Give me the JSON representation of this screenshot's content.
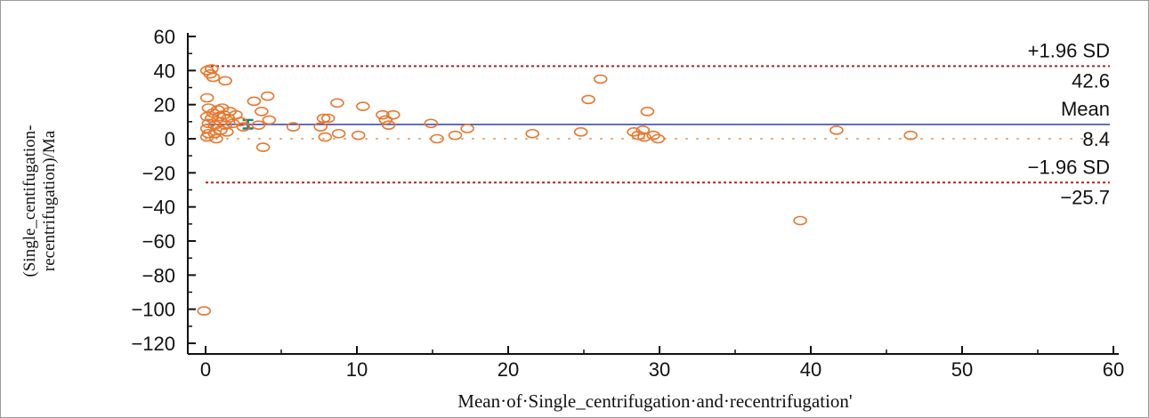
{
  "chart_data": {
    "type": "scatter",
    "title": "",
    "xlabel": "Mean·of·Single_centrifugation·and·recentrifugation'",
    "ylabel_lines": [
      "(Single_centifugation-",
      "recentrifugation)/Ma"
    ],
    "xlim": [
      0,
      60
    ],
    "ylim": [
      -120,
      60
    ],
    "x_ticks": [
      0,
      10,
      20,
      30,
      40,
      50,
      60
    ],
    "y_ticks": [
      60,
      40,
      20,
      0,
      -20,
      -40,
      -60,
      -80,
      -100,
      -120
    ],
    "grid": false,
    "reference_lines": [
      {
        "name": "+1.96 SD",
        "value": 42.6,
        "value_label": "42.6",
        "style": "dotted",
        "color": "#b22222"
      },
      {
        "name": "Mean",
        "value": 8.4,
        "value_label": "8.4",
        "style": "solid",
        "color": "#3b4bb5"
      },
      {
        "name": "-1.96 SD",
        "value": -25.7,
        "value_label": "-25.7",
        "style": "dotted",
        "color": "#b22222"
      }
    ],
    "zero_line": {
      "value": 0,
      "style": "dotted",
      "color": "#e0a878"
    },
    "mean_ci": {
      "x": 2.8,
      "low": 6,
      "high": 11
    },
    "marker_color": "#e8782e",
    "points": [
      {
        "x": 0.1,
        "y": 40
      },
      {
        "x": 0.3,
        "y": 38
      },
      {
        "x": 0.4,
        "y": 41
      },
      {
        "x": 0.5,
        "y": 36
      },
      {
        "x": 1.3,
        "y": 34
      },
      {
        "x": 0.1,
        "y": 24
      },
      {
        "x": 0.2,
        "y": 18
      },
      {
        "x": 0.1,
        "y": 13
      },
      {
        "x": 0.2,
        "y": 9
      },
      {
        "x": 0.1,
        "y": 6
      },
      {
        "x": 0.2,
        "y": 3
      },
      {
        "x": 0.1,
        "y": 1
      },
      {
        "x": 0.4,
        "y": 12
      },
      {
        "x": 0.5,
        "y": 15
      },
      {
        "x": 0.6,
        "y": 8
      },
      {
        "x": 0.6,
        "y": 3
      },
      {
        "x": 0.7,
        "y": 0
      },
      {
        "x": 0.8,
        "y": 17
      },
      {
        "x": 0.9,
        "y": 13
      },
      {
        "x": 1.0,
        "y": 10
      },
      {
        "x": 1.0,
        "y": 5
      },
      {
        "x": 1.1,
        "y": 18
      },
      {
        "x": 1.2,
        "y": 14
      },
      {
        "x": 1.3,
        "y": 8
      },
      {
        "x": 1.4,
        "y": 4
      },
      {
        "x": 1.5,
        "y": 12
      },
      {
        "x": 1.6,
        "y": 16
      },
      {
        "x": 1.8,
        "y": 9
      },
      {
        "x": 2.0,
        "y": 14
      },
      {
        "x": 2.3,
        "y": 10
      },
      {
        "x": 2.5,
        "y": 7
      },
      {
        "x": 3.2,
        "y": 22
      },
      {
        "x": 3.5,
        "y": 8
      },
      {
        "x": 3.7,
        "y": 16
      },
      {
        "x": 4.1,
        "y": 25
      },
      {
        "x": 4.2,
        "y": 11
      },
      {
        "x": 3.8,
        "y": -5
      },
      {
        "x": 5.8,
        "y": 7
      },
      {
        "x": 7.6,
        "y": 7
      },
      {
        "x": 7.8,
        "y": 12
      },
      {
        "x": 8.1,
        "y": 12
      },
      {
        "x": 7.9,
        "y": 1
      },
      {
        "x": 8.7,
        "y": 21
      },
      {
        "x": 8.8,
        "y": 3
      },
      {
        "x": 10.1,
        "y": 2
      },
      {
        "x": 10.4,
        "y": 19
      },
      {
        "x": 11.7,
        "y": 14
      },
      {
        "x": 11.9,
        "y": 11
      },
      {
        "x": 12.1,
        "y": 8
      },
      {
        "x": 12.4,
        "y": 14
      },
      {
        "x": 14.9,
        "y": 9
      },
      {
        "x": 15.3,
        "y": 0
      },
      {
        "x": 16.5,
        "y": 2
      },
      {
        "x": 17.3,
        "y": 6
      },
      {
        "x": 21.6,
        "y": 3
      },
      {
        "x": 24.8,
        "y": 4
      },
      {
        "x": 25.3,
        "y": 23
      },
      {
        "x": 26.1,
        "y": 35
      },
      {
        "x": 28.3,
        "y": 4
      },
      {
        "x": 28.6,
        "y": 2
      },
      {
        "x": 28.9,
        "y": 5
      },
      {
        "x": 29.2,
        "y": 16
      },
      {
        "x": 29.0,
        "y": 1
      },
      {
        "x": 29.6,
        "y": 2
      },
      {
        "x": 29.9,
        "y": 0
      },
      {
        "x": 39.3,
        "y": -48
      },
      {
        "x": 41.7,
        "y": 5
      },
      {
        "x": 46.6,
        "y": 2
      },
      {
        "x": -0.1,
        "y": -101
      }
    ]
  }
}
